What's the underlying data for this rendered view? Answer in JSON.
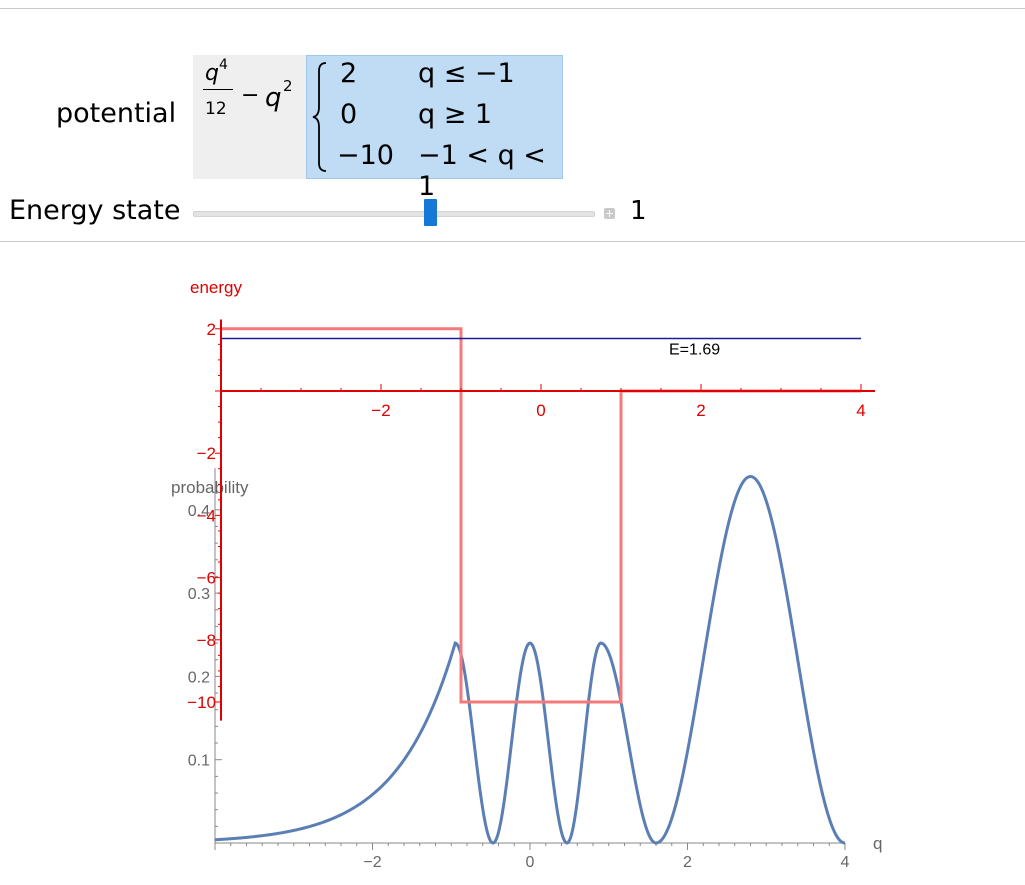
{
  "controls": {
    "potential_label": "potential",
    "energy_state_label": "Energy state",
    "energy_state_value": "1",
    "expression": {
      "num_var": "q",
      "num_exp": "4",
      "den": "12",
      "minus": "−",
      "var": "q",
      "var_exp": "2"
    },
    "piecewise": [
      {
        "value": "2",
        "condition": "q ≤ −1"
      },
      {
        "value": "0",
        "condition": "q ≥ 1"
      },
      {
        "value": "−10",
        "condition": "−1 < q < 1"
      }
    ],
    "slider": {
      "min": 0,
      "max": 5,
      "current": 1
    }
  },
  "chart_data": [
    {
      "type": "line",
      "name": "potential",
      "ylabel": "energy",
      "xlim": [
        -4,
        4
      ],
      "ylim": [
        -10,
        2
      ],
      "x_ticks": [
        "−2",
        "0",
        "2",
        "4"
      ],
      "y_ticks": [
        "2",
        "−2",
        "−4",
        "−6",
        "−8",
        "−10"
      ],
      "potential_points": [
        [
          -4,
          2
        ],
        [
          -1,
          2
        ],
        [
          -1,
          -10
        ],
        [
          1,
          -10
        ],
        [
          1,
          0
        ],
        [
          4,
          0
        ]
      ],
      "energy_value": 1.69,
      "energy_label": "E=1.69",
      "colors": {
        "axis": "#e00000",
        "potential": "#f47a7a",
        "energy": "#1c1c99"
      }
    },
    {
      "type": "line",
      "name": "probability",
      "ylabel": "probability",
      "xlabel": "q",
      "xlim": [
        -4,
        4
      ],
      "ylim": [
        0,
        0.45
      ],
      "x_ticks": [
        "−2",
        "0",
        "2",
        "4"
      ],
      "y_ticks": [
        "0.1",
        "0.2",
        "0.3",
        "0.4"
      ],
      "peaks": [
        {
          "x": -0.95,
          "y": 0.24
        },
        {
          "x": 0.0,
          "y": 0.24
        },
        {
          "x": 0.9,
          "y": 0.24
        },
        {
          "x": 2.8,
          "y": 0.44
        }
      ],
      "zeros": [
        -0.47,
        0.47,
        1.6
      ],
      "colors": {
        "axis": "#888888",
        "curve": "#5b7fb5"
      }
    }
  ]
}
